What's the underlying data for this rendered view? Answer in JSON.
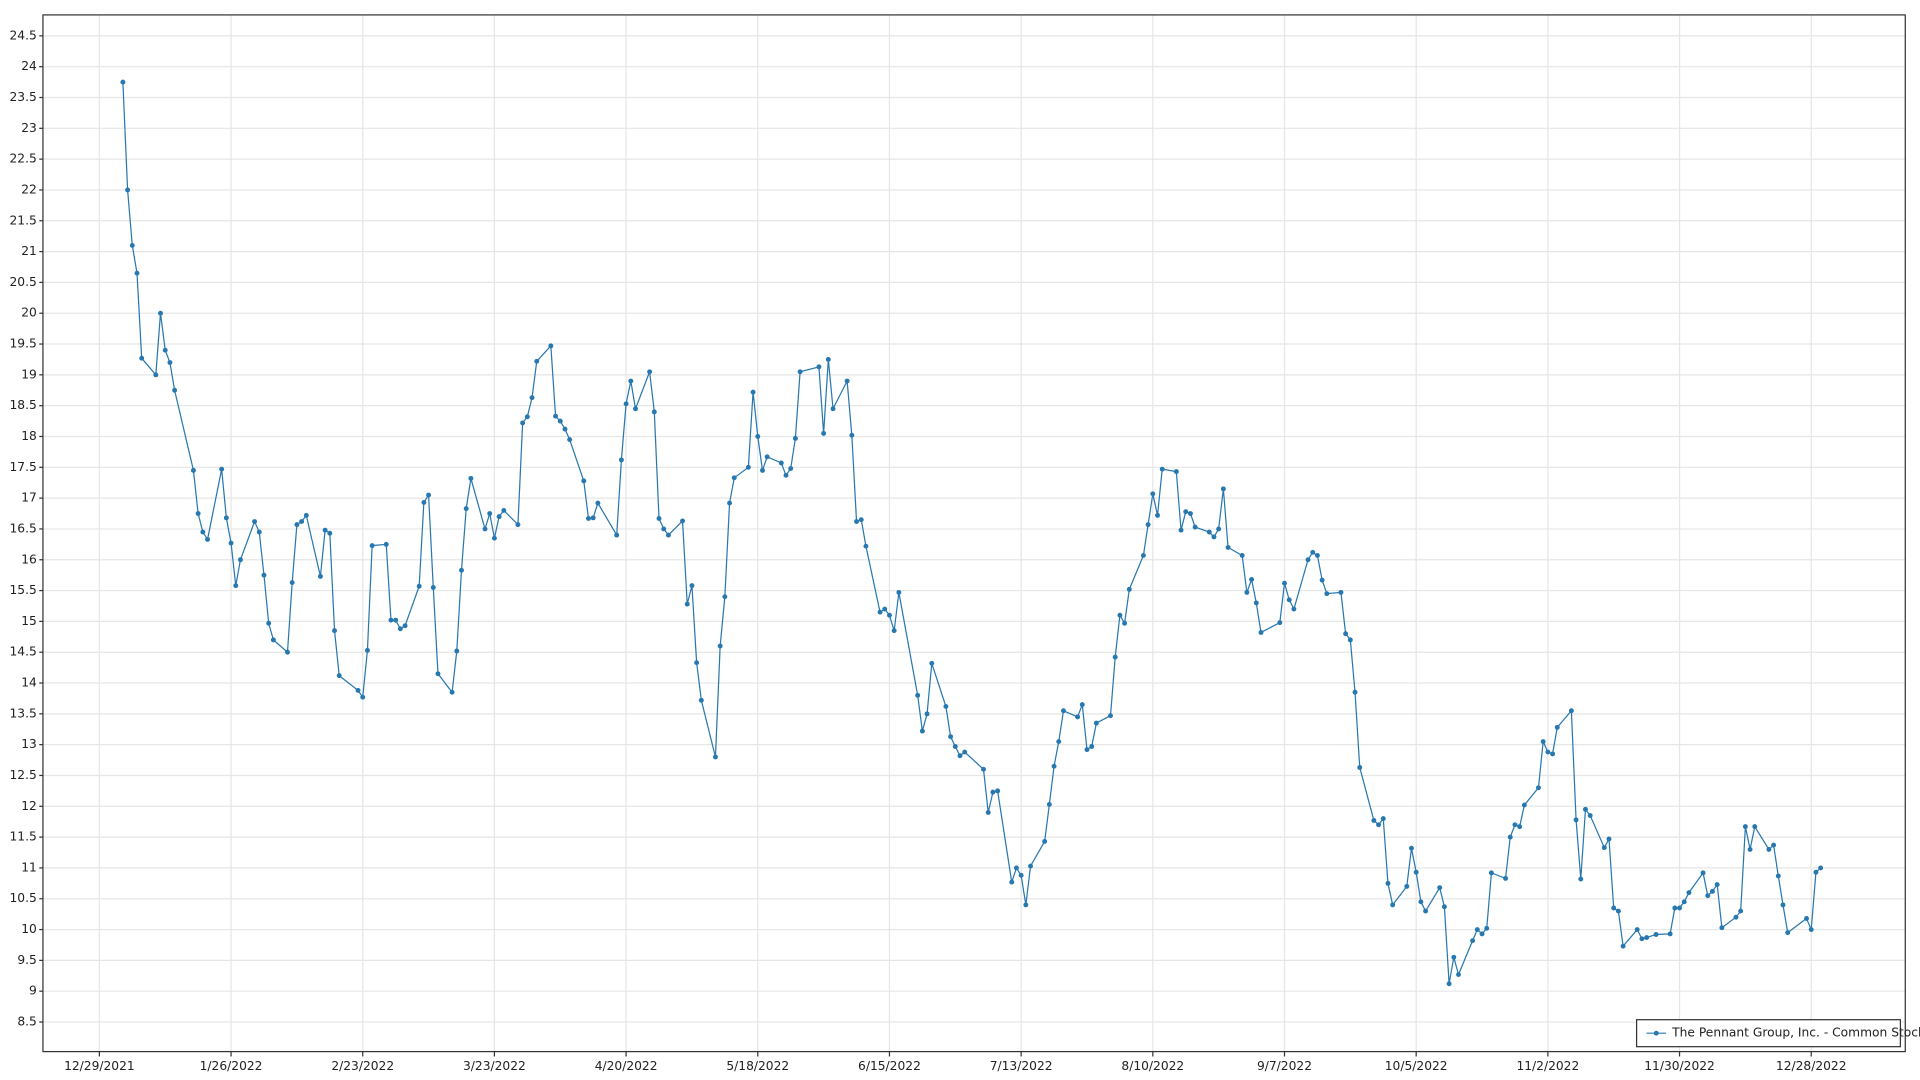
{
  "chart_data": {
    "type": "line",
    "x": [
      "2022-01-03",
      "2022-01-04",
      "2022-01-05",
      "2022-01-06",
      "2022-01-07",
      "2022-01-10",
      "2022-01-11",
      "2022-01-12",
      "2022-01-13",
      "2022-01-14",
      "2022-01-18",
      "2022-01-19",
      "2022-01-20",
      "2022-01-21",
      "2022-01-24",
      "2022-01-25",
      "2022-01-26",
      "2022-01-27",
      "2022-01-28",
      "2022-01-31",
      "2022-02-01",
      "2022-02-02",
      "2022-02-03",
      "2022-02-04",
      "2022-02-07",
      "2022-02-08",
      "2022-02-09",
      "2022-02-10",
      "2022-02-11",
      "2022-02-14",
      "2022-02-15",
      "2022-02-16",
      "2022-02-17",
      "2022-02-18",
      "2022-02-22",
      "2022-02-23",
      "2022-02-24",
      "2022-02-25",
      "2022-02-28",
      "2022-03-01",
      "2022-03-02",
      "2022-03-03",
      "2022-03-04",
      "2022-03-07",
      "2022-03-08",
      "2022-03-09",
      "2022-03-10",
      "2022-03-11",
      "2022-03-14",
      "2022-03-15",
      "2022-03-16",
      "2022-03-17",
      "2022-03-18",
      "2022-03-21",
      "2022-03-22",
      "2022-03-23",
      "2022-03-24",
      "2022-03-25",
      "2022-03-28",
      "2022-03-29",
      "2022-03-30",
      "2022-03-31",
      "2022-04-01",
      "2022-04-04",
      "2022-04-05",
      "2022-04-06",
      "2022-04-07",
      "2022-04-08",
      "2022-04-11",
      "2022-04-12",
      "2022-04-13",
      "2022-04-14",
      "2022-04-18",
      "2022-04-19",
      "2022-04-20",
      "2022-04-21",
      "2022-04-22",
      "2022-04-25",
      "2022-04-26",
      "2022-04-27",
      "2022-04-28",
      "2022-04-29",
      "2022-05-02",
      "2022-05-03",
      "2022-05-04",
      "2022-05-05",
      "2022-05-06",
      "2022-05-09",
      "2022-05-10",
      "2022-05-11",
      "2022-05-12",
      "2022-05-13",
      "2022-05-16",
      "2022-05-17",
      "2022-05-18",
      "2022-05-19",
      "2022-05-20",
      "2022-05-23",
      "2022-05-24",
      "2022-05-25",
      "2022-05-26",
      "2022-05-27",
      "2022-05-31",
      "2022-06-01",
      "2022-06-02",
      "2022-06-03",
      "2022-06-06",
      "2022-06-07",
      "2022-06-08",
      "2022-06-09",
      "2022-06-10",
      "2022-06-13",
      "2022-06-14",
      "2022-06-15",
      "2022-06-16",
      "2022-06-17",
      "2022-06-21",
      "2022-06-22",
      "2022-06-23",
      "2022-06-24",
      "2022-06-27",
      "2022-06-28",
      "2022-06-29",
      "2022-06-30",
      "2022-07-01",
      "2022-07-05",
      "2022-07-06",
      "2022-07-07",
      "2022-07-08",
      "2022-07-11",
      "2022-07-12",
      "2022-07-13",
      "2022-07-14",
      "2022-07-15",
      "2022-07-18",
      "2022-07-19",
      "2022-07-20",
      "2022-07-21",
      "2022-07-22",
      "2022-07-25",
      "2022-07-26",
      "2022-07-27",
      "2022-07-28",
      "2022-07-29",
      "2022-08-01",
      "2022-08-02",
      "2022-08-03",
      "2022-08-04",
      "2022-08-05",
      "2022-08-08",
      "2022-08-09",
      "2022-08-10",
      "2022-08-11",
      "2022-08-12",
      "2022-08-15",
      "2022-08-16",
      "2022-08-17",
      "2022-08-18",
      "2022-08-19",
      "2022-08-22",
      "2022-08-23",
      "2022-08-24",
      "2022-08-25",
      "2022-08-26",
      "2022-08-29",
      "2022-08-30",
      "2022-08-31",
      "2022-09-01",
      "2022-09-02",
      "2022-09-06",
      "2022-09-07",
      "2022-09-08",
      "2022-09-09",
      "2022-09-12",
      "2022-09-13",
      "2022-09-14",
      "2022-09-15",
      "2022-09-16",
      "2022-09-19",
      "2022-09-20",
      "2022-09-21",
      "2022-09-22",
      "2022-09-23",
      "2022-09-26",
      "2022-09-27",
      "2022-09-28",
      "2022-09-29",
      "2022-09-30",
      "2022-10-03",
      "2022-10-04",
      "2022-10-05",
      "2022-10-06",
      "2022-10-07",
      "2022-10-10",
      "2022-10-11",
      "2022-10-12",
      "2022-10-13",
      "2022-10-14",
      "2022-10-17",
      "2022-10-18",
      "2022-10-19",
      "2022-10-20",
      "2022-10-21",
      "2022-10-24",
      "2022-10-25",
      "2022-10-26",
      "2022-10-27",
      "2022-10-28",
      "2022-10-31",
      "2022-11-01",
      "2022-11-02",
      "2022-11-03",
      "2022-11-04",
      "2022-11-07",
      "2022-11-08",
      "2022-11-09",
      "2022-11-10",
      "2022-11-11",
      "2022-11-14",
      "2022-11-15",
      "2022-11-16",
      "2022-11-17",
      "2022-11-18",
      "2022-11-21",
      "2022-11-22",
      "2022-11-23",
      "2022-11-25",
      "2022-11-28",
      "2022-11-29",
      "2022-11-30",
      "2022-12-01",
      "2022-12-02",
      "2022-12-05",
      "2022-12-06",
      "2022-12-07",
      "2022-12-08",
      "2022-12-09",
      "2022-12-12",
      "2022-12-13",
      "2022-12-14",
      "2022-12-15",
      "2022-12-16",
      "2022-12-19",
      "2022-12-20",
      "2022-12-21",
      "2022-12-22",
      "2022-12-23",
      "2022-12-27",
      "2022-12-28",
      "2022-12-29",
      "2022-12-30"
    ],
    "series": [
      {
        "name": "The Pennant Group, Inc. - Common Stock",
        "color": "#2878b0",
        "values": [
          23.75,
          22.0,
          21.1,
          20.65,
          19.27,
          19.0,
          20.0,
          19.4,
          19.2,
          18.75,
          17.45,
          16.75,
          16.45,
          16.33,
          17.47,
          16.68,
          16.27,
          15.58,
          16.0,
          16.62,
          16.45,
          15.75,
          14.97,
          14.7,
          14.5,
          15.63,
          16.57,
          16.62,
          16.72,
          15.73,
          16.48,
          16.43,
          14.85,
          14.12,
          13.88,
          13.77,
          14.53,
          16.23,
          16.25,
          15.02,
          15.02,
          14.88,
          14.93,
          15.57,
          16.93,
          17.05,
          15.55,
          14.15,
          13.85,
          14.52,
          15.83,
          16.83,
          17.32,
          16.5,
          16.75,
          16.35,
          16.7,
          16.8,
          16.57,
          18.22,
          18.32,
          18.63,
          19.22,
          19.47,
          18.33,
          18.25,
          18.12,
          17.95,
          17.28,
          16.67,
          16.68,
          16.92,
          16.4,
          17.62,
          18.53,
          18.9,
          18.45,
          19.05,
          18.4,
          16.67,
          16.5,
          16.4,
          16.63,
          15.28,
          15.58,
          14.33,
          13.72,
          12.8,
          14.6,
          15.4,
          16.92,
          17.33,
          17.5,
          18.72,
          18.0,
          17.45,
          17.67,
          17.57,
          17.37,
          17.48,
          17.97,
          19.05,
          19.13,
          18.05,
          19.25,
          18.45,
          18.9,
          18.02,
          16.62,
          16.65,
          16.22,
          15.15,
          15.2,
          15.1,
          14.85,
          15.47,
          13.8,
          13.22,
          13.5,
          14.32,
          13.62,
          13.13,
          12.97,
          12.82,
          12.88,
          12.6,
          11.9,
          12.23,
          12.25,
          10.77,
          11.0,
          10.88,
          10.4,
          11.03,
          11.43,
          12.03,
          12.65,
          13.05,
          13.55,
          13.45,
          13.65,
          12.92,
          12.97,
          13.35,
          13.47,
          14.42,
          15.1,
          14.97,
          15.52,
          16.07,
          16.57,
          17.07,
          16.72,
          17.47,
          17.43,
          16.48,
          16.78,
          16.75,
          16.53,
          16.45,
          16.37,
          16.5,
          17.15,
          16.2,
          16.07,
          15.47,
          15.68,
          15.3,
          14.82,
          14.98,
          15.62,
          15.35,
          15.2,
          16.0,
          16.12,
          16.07,
          15.67,
          15.45,
          15.47,
          14.8,
          14.7,
          13.85,
          12.63,
          11.77,
          11.7,
          11.8,
          10.75,
          10.4,
          10.7,
          11.32,
          10.93,
          10.45,
          10.3,
          10.68,
          10.37,
          9.12,
          9.55,
          9.27,
          9.82,
          10.0,
          9.93,
          10.02,
          10.92,
          10.83,
          11.5,
          11.7,
          11.67,
          12.02,
          12.3,
          13.05,
          12.88,
          12.85,
          13.28,
          13.55,
          11.78,
          10.82,
          11.95,
          11.85,
          11.33,
          11.47,
          10.35,
          10.3,
          9.73,
          10.0,
          9.85,
          9.87,
          9.92,
          9.93,
          10.35,
          10.35,
          10.45,
          10.6,
          10.92,
          10.55,
          10.62,
          10.73,
          10.03,
          10.2,
          10.3,
          11.67,
          11.3,
          11.67,
          11.3,
          11.37,
          10.87,
          10.4,
          9.95,
          10.18,
          10.0,
          10.93,
          11.0
        ]
      }
    ],
    "xlim": [
      "2021-12-17",
      "2023-01-17"
    ],
    "xticks": [
      {
        "value": "2021-12-29",
        "label": "12/29/2021"
      },
      {
        "value": "2022-01-26",
        "label": "1/26/2022"
      },
      {
        "value": "2022-02-23",
        "label": "2/23/2022"
      },
      {
        "value": "2022-03-23",
        "label": "3/23/2022"
      },
      {
        "value": "2022-04-20",
        "label": "4/20/2022"
      },
      {
        "value": "2022-05-18",
        "label": "5/18/2022"
      },
      {
        "value": "2022-06-15",
        "label": "6/15/2022"
      },
      {
        "value": "2022-07-13",
        "label": "7/13/2022"
      },
      {
        "value": "2022-08-10",
        "label": "8/10/2022"
      },
      {
        "value": "2022-09-07",
        "label": "9/7/2022"
      },
      {
        "value": "2022-10-05",
        "label": "10/5/2022"
      },
      {
        "value": "2022-11-02",
        "label": "11/2/2022"
      },
      {
        "value": "2022-11-30",
        "label": "11/30/2022"
      },
      {
        "value": "2022-12-28",
        "label": "12/28/2022"
      }
    ],
    "ylim": [
      8.02,
      24.84
    ],
    "yticks": [
      8.5,
      9,
      9.5,
      10,
      10.5,
      11,
      11.5,
      12,
      12.5,
      13,
      13.5,
      14,
      14.5,
      15,
      15.5,
      16,
      16.5,
      17,
      17.5,
      18,
      18.5,
      19,
      19.5,
      20,
      20.5,
      21,
      21.5,
      22,
      22.5,
      23,
      23.5,
      24,
      24.5
    ],
    "grid": true,
    "legend": "lower right"
  }
}
